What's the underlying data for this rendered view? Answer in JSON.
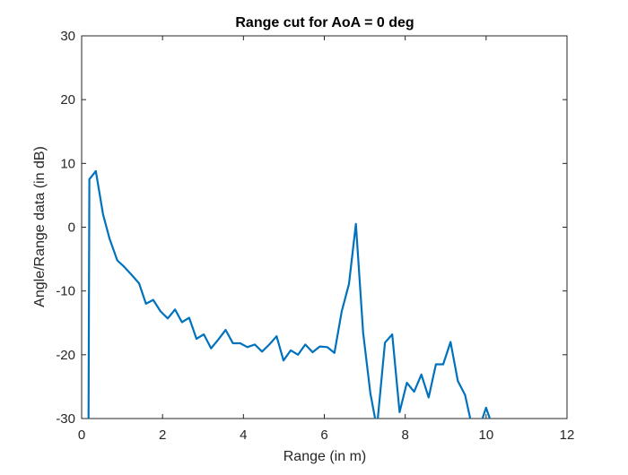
{
  "chart_data": {
    "type": "line",
    "title": "Range cut for AoA = 0 deg",
    "xlabel": "Range (in m)",
    "ylabel": "Angle/Range data (in dB)",
    "xlim": [
      0,
      12
    ],
    "ylim": [
      -30,
      30
    ],
    "xticks": [
      0,
      2,
      4,
      6,
      8,
      10,
      12
    ],
    "yticks": [
      -30,
      -20,
      -10,
      0,
      10,
      20,
      30
    ],
    "xtick_labels": [
      "0",
      "2",
      "4",
      "6",
      "8",
      "10",
      "12"
    ],
    "ytick_labels": [
      "-30",
      "-20",
      "-10",
      "0",
      "10",
      "20",
      "30"
    ],
    "grid": false,
    "series": [
      {
        "color": "#0072BD",
        "x": [
          0.17,
          0.19,
          0.35,
          0.53,
          0.69,
          0.88,
          1.05,
          1.24,
          1.42,
          1.59,
          1.77,
          1.95,
          2.13,
          2.31,
          2.48,
          2.66,
          2.84,
          3.02,
          3.2,
          3.38,
          3.56,
          3.74,
          3.92,
          4.1,
          4.28,
          4.46,
          4.64,
          4.82,
          4.99,
          5.17,
          5.35,
          5.53,
          5.71,
          5.89,
          6.07,
          6.25,
          6.43,
          6.61,
          6.78,
          6.96,
          7.14,
          7.3,
          7.5,
          7.68,
          7.86,
          8.04,
          8.22,
          8.4,
          8.58,
          8.76,
          8.94,
          9.12,
          9.3,
          9.48,
          9.66,
          9.83,
          10.0,
          10.12
        ],
        "y": [
          -30,
          7.5,
          8.8,
          2.0,
          -1.8,
          -5.2,
          -6.2,
          -7.5,
          -8.8,
          -12.0,
          -11.4,
          -13.2,
          -14.3,
          -12.9,
          -14.9,
          -14.2,
          -17.5,
          -16.8,
          -19.0,
          -17.6,
          -16.1,
          -18.2,
          -18.2,
          -18.8,
          -18.4,
          -19.5,
          -18.4,
          -17.1,
          -20.9,
          -19.3,
          -20.0,
          -18.4,
          -19.6,
          -18.7,
          -18.8,
          -19.7,
          -13.2,
          -8.9,
          0.5,
          -16.6,
          -26.1,
          -31.5,
          -18.1,
          -16.8,
          -29.0,
          -24.4,
          -25.8,
          -23.1,
          -26.7,
          -21.5,
          -21.5,
          -18.0,
          -24.1,
          -26.3,
          -31.5,
          -31.5,
          -28.3,
          -30.5
        ]
      }
    ]
  }
}
